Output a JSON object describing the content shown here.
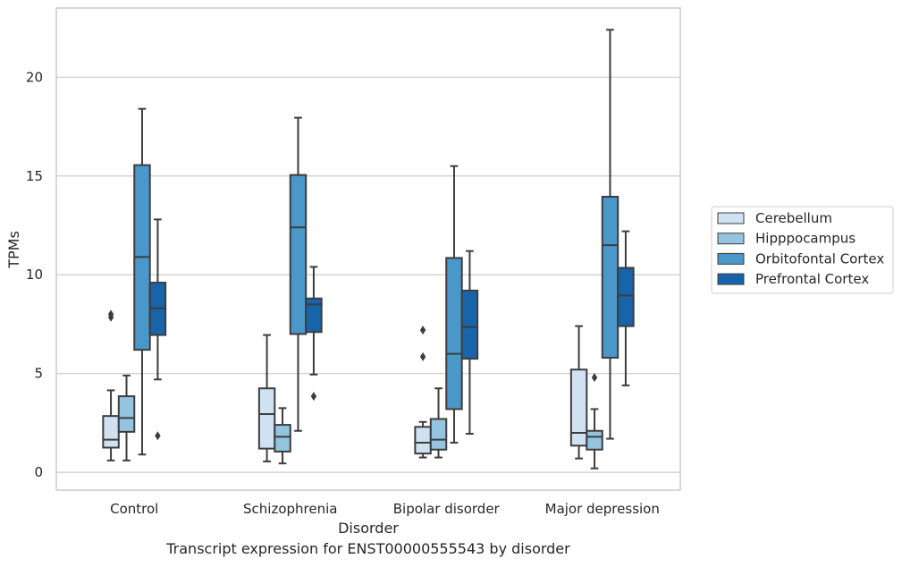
{
  "caption": "Transcript expression for ENST00000555543 by disorder",
  "chart_data": {
    "type": "boxplot",
    "title": "",
    "xlabel": "Disorder",
    "ylabel": "TPMs",
    "ylim": [
      -0.9,
      23.5
    ],
    "yticks": [
      0,
      5,
      10,
      15,
      20
    ],
    "grid": "horizontal",
    "legend_position": "right",
    "categories": [
      "Control",
      "Schizophrenia",
      "Bipolar disorder",
      "Major depression"
    ],
    "series": [
      {
        "name": "Cerebellum",
        "color": "#d0e1f2",
        "boxes": [
          {
            "whislo": 0.6,
            "q1": 1.25,
            "med": 1.65,
            "q3": 2.85,
            "whishi": 4.15,
            "fliers": [
              7.85,
              8.0
            ]
          },
          {
            "whislo": 0.55,
            "q1": 1.2,
            "med": 2.95,
            "q3": 4.25,
            "whishi": 6.95,
            "fliers": []
          },
          {
            "whislo": 0.75,
            "q1": 0.95,
            "med": 1.5,
            "q3": 2.3,
            "whishi": 2.55,
            "fliers": [
              5.85,
              7.2
            ]
          },
          {
            "whislo": 0.7,
            "q1": 1.35,
            "med": 2.0,
            "q3": 5.2,
            "whishi": 7.4,
            "fliers": []
          }
        ]
      },
      {
        "name": "Hipppocampus",
        "color": "#94c4df",
        "boxes": [
          {
            "whislo": 0.6,
            "q1": 2.05,
            "med": 2.75,
            "q3": 3.85,
            "whishi": 4.9,
            "fliers": []
          },
          {
            "whislo": 0.45,
            "q1": 1.05,
            "med": 1.8,
            "q3": 2.4,
            "whishi": 3.25,
            "fliers": []
          },
          {
            "whislo": 0.75,
            "q1": 1.15,
            "med": 1.65,
            "q3": 2.7,
            "whishi": 4.25,
            "fliers": []
          },
          {
            "whislo": 0.2,
            "q1": 1.15,
            "med": 1.8,
            "q3": 2.1,
            "whishi": 3.2,
            "fliers": [
              4.8
            ]
          }
        ]
      },
      {
        "name": "Orbitofontal Cortex",
        "color": "#4a98c9",
        "boxes": [
          {
            "whislo": 0.9,
            "q1": 6.2,
            "med": 10.9,
            "q3": 15.55,
            "whishi": 18.4,
            "fliers": []
          },
          {
            "whislo": 2.1,
            "q1": 7.0,
            "med": 12.4,
            "q3": 15.05,
            "whishi": 17.95,
            "fliers": []
          },
          {
            "whislo": 1.5,
            "q1": 3.2,
            "med": 6.0,
            "q3": 10.85,
            "whishi": 15.5,
            "fliers": []
          },
          {
            "whislo": 1.7,
            "q1": 5.8,
            "med": 11.5,
            "q3": 13.95,
            "whishi": 22.4,
            "fliers": []
          }
        ]
      },
      {
        "name": "Prefrontal Cortex",
        "color": "#1764ab",
        "boxes": [
          {
            "whislo": 4.7,
            "q1": 6.95,
            "med": 8.3,
            "q3": 9.6,
            "whishi": 12.8,
            "fliers": [
              1.85
            ]
          },
          {
            "whislo": 4.95,
            "q1": 7.1,
            "med": 8.5,
            "q3": 8.8,
            "whishi": 10.4,
            "fliers": [
              3.85
            ]
          },
          {
            "whislo": 1.95,
            "q1": 5.75,
            "med": 7.35,
            "q3": 9.2,
            "whishi": 11.2,
            "fliers": []
          },
          {
            "whislo": 4.4,
            "q1": 7.4,
            "med": 8.95,
            "q3": 10.35,
            "whishi": 12.2,
            "fliers": []
          }
        ]
      }
    ]
  }
}
